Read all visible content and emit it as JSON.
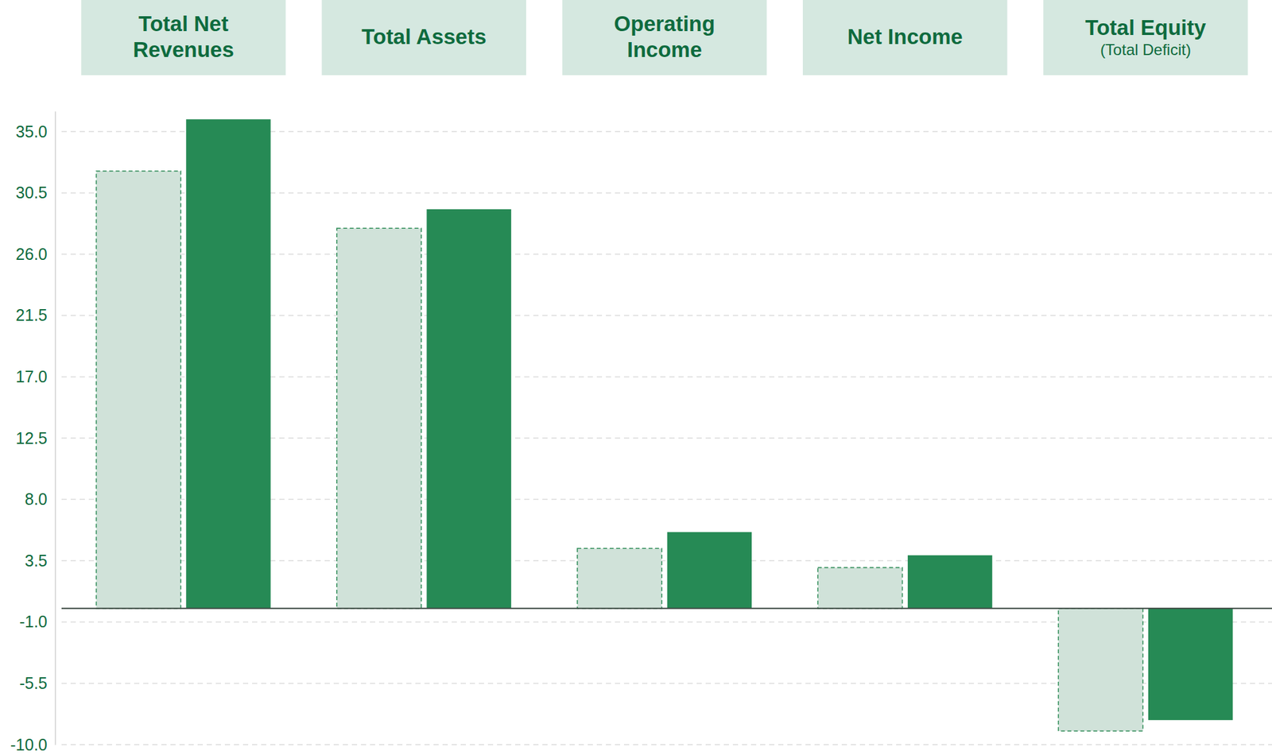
{
  "chart_data": {
    "type": "bar",
    "categories": [
      "Total Net Revenues",
      "Total Assets",
      "Operating Income",
      "Net Income",
      "Total Equity (Total Deficit)"
    ],
    "series": [
      {
        "color": "#d0e2d9",
        "line_style": "dashed",
        "values": [
          32.1,
          27.9,
          4.4,
          3.0,
          -9.0
        ]
      },
      {
        "color": "#268a55",
        "values": [
          35.9,
          29.3,
          5.6,
          3.9,
          -8.2
        ]
      }
    ],
    "ylim": [
      -10,
      36.5
    ],
    "yticks": [
      {
        "value": 35,
        "label": "35.0"
      },
      30.5,
      {
        "value": 26,
        "label": "26.0"
      },
      21.5,
      {
        "value": 17,
        "label": "17.0"
      },
      12.5,
      {
        "value": 8,
        "label": "8.0"
      },
      3.5,
      {
        "value": -1,
        "label": "-1.0"
      },
      -5.5,
      {
        "value": -10,
        "label": "-10.0"
      }
    ],
    "grid": true
  }
}
